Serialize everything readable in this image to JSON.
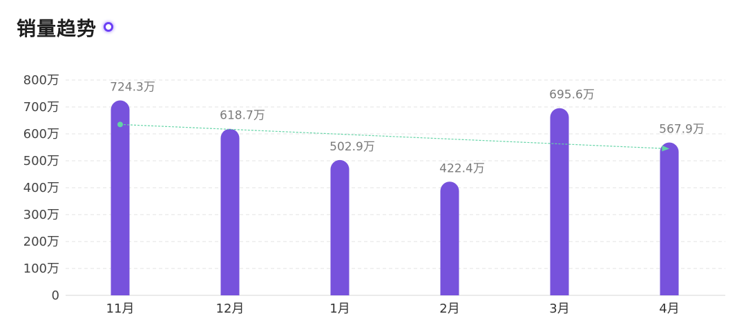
{
  "header": {
    "title": "销量趋势"
  },
  "colors": {
    "bar": "#7752dc",
    "trend": "#63d4a6",
    "grid": "#e3e3e3",
    "axis": "#d7d7d7",
    "title_dot": "#6a3ef5"
  },
  "chart_data": {
    "type": "bar",
    "title": "销量趋势",
    "categories": [
      "11月",
      "12月",
      "1月",
      "2月",
      "3月",
      "4月"
    ],
    "values": [
      724.3,
      618.7,
      502.9,
      422.4,
      695.6,
      567.9
    ],
    "data_labels": [
      "724.3万",
      "618.7万",
      "502.9万",
      "422.4万",
      "695.6万",
      "567.9万"
    ],
    "ylim": [
      0,
      800
    ],
    "yticks": [
      0,
      100,
      200,
      300,
      400,
      500,
      600,
      700,
      800
    ],
    "ytick_labels": [
      "0",
      "100万",
      "200万",
      "300万",
      "400万",
      "500万",
      "600万",
      "700万",
      "800万"
    ],
    "grid": true,
    "trendline": {
      "from_category": "11月",
      "to_category": "4月",
      "from_value": 635,
      "to_value": 545,
      "arrow": true
    }
  }
}
